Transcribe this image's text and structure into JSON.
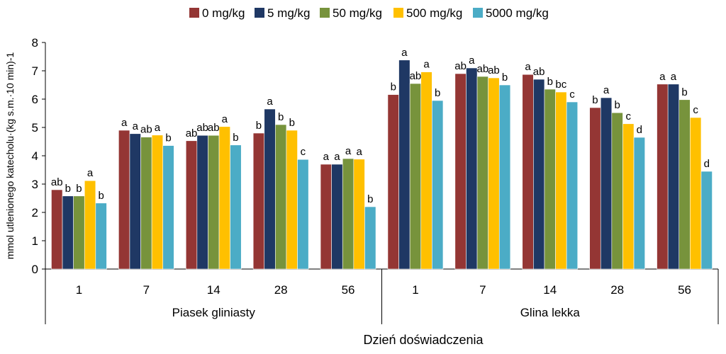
{
  "chart_data": {
    "type": "bar",
    "ylabel": "mmol utlenionego katecholu·(kg s.m.·10 min)-1",
    "xlabel": "Dzień doświadczenia",
    "ylim": [
      0,
      8
    ],
    "yticks": [
      0,
      1,
      2,
      3,
      4,
      5,
      6,
      7,
      8
    ],
    "grid": false,
    "legend_position": "top",
    "groups": [
      {
        "label": "Piasek gliniasty",
        "days": [
          "1",
          "7",
          "14",
          "28",
          "56"
        ]
      },
      {
        "label": "Glina lekka",
        "days": [
          "1",
          "7",
          "14",
          "28",
          "56"
        ]
      }
    ],
    "series": [
      {
        "name": "0 mg/kg",
        "color": "#943634",
        "values": [
          2.8,
          4.9,
          4.53,
          4.8,
          3.7,
          6.16,
          6.9,
          6.87,
          5.7,
          6.53
        ],
        "letters": [
          "ab",
          "a",
          "ab",
          "b",
          "a",
          "b",
          "ab",
          "a",
          "b",
          "a"
        ]
      },
      {
        "name": "5 mg/kg",
        "color": "#1f3864",
        "values": [
          2.58,
          4.78,
          4.72,
          5.65,
          3.7,
          7.38,
          7.1,
          6.7,
          6.05,
          6.53
        ],
        "letters": [
          "b",
          "a",
          "ab",
          "a",
          "a",
          "a",
          "a",
          "ab",
          "a",
          "a"
        ]
      },
      {
        "name": "50 mg/kg",
        "color": "#77933c",
        "values": [
          2.58,
          4.66,
          4.72,
          5.1,
          3.9,
          6.55,
          6.8,
          6.35,
          5.52,
          5.98
        ],
        "letters": [
          "b",
          "ab",
          "ab",
          "b",
          "a",
          "ab",
          "ab",
          "b",
          "b",
          "b"
        ]
      },
      {
        "name": "500 mg/kg",
        "color": "#ffc000",
        "values": [
          3.12,
          4.73,
          5.03,
          4.9,
          3.88,
          6.96,
          6.75,
          6.25,
          5.13,
          5.35
        ],
        "letters": [
          "a",
          "a",
          "a",
          "b",
          "a",
          "a",
          "ab",
          "bc",
          "c",
          "c"
        ]
      },
      {
        "name": "5000 mg/kg",
        "color": "#4bacc6",
        "values": [
          2.33,
          4.36,
          4.38,
          3.87,
          2.2,
          5.95,
          6.5,
          5.9,
          4.65,
          3.45
        ],
        "letters": [
          "b",
          "b",
          "b",
          "c",
          "b",
          "b",
          "b",
          "c",
          "d",
          "d"
        ]
      }
    ]
  }
}
